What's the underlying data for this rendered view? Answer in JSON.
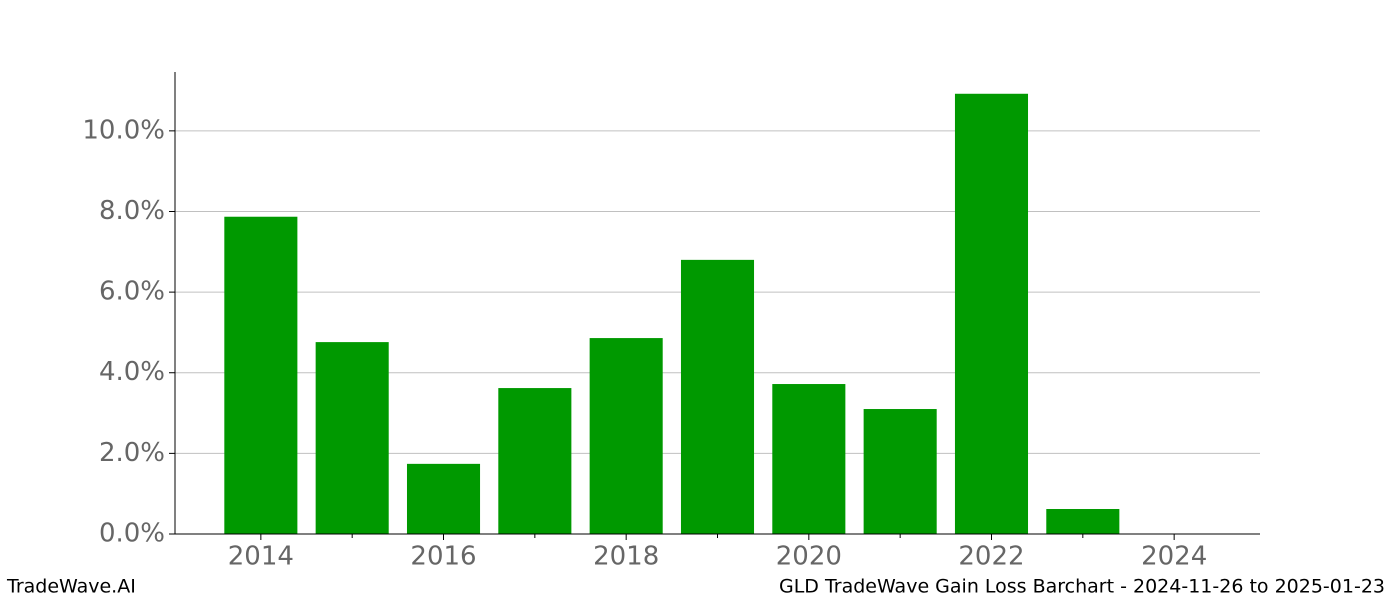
{
  "chart_data": {
    "type": "bar",
    "title": "GLD TradeWave Gain Loss Barchart - 2024-11-26 to 2025-01-23",
    "source": "TradeWave.AI",
    "x": [
      2014,
      2015,
      2016,
      2017,
      2018,
      2019,
      2020,
      2021,
      2022,
      2023
    ],
    "values": [
      7.87,
      4.76,
      1.74,
      3.62,
      4.86,
      6.8,
      3.72,
      3.1,
      10.92,
      0.62
    ],
    "color": "#009900",
    "xlim": [
      2013.06,
      2024.94
    ],
    "xticks": [
      2014,
      2016,
      2018,
      2020,
      2022,
      2024
    ],
    "xminorticks": [
      2015,
      2017,
      2019,
      2021,
      2023
    ],
    "ylim": [
      0,
      11.46
    ],
    "yticks": [
      {
        "value": 0,
        "label": "0.0%"
      },
      {
        "value": 2,
        "label": "2.0%"
      },
      {
        "value": 4,
        "label": "4.0%"
      },
      {
        "value": 6,
        "label": "6.0%"
      },
      {
        "value": 8,
        "label": "8.0%"
      },
      {
        "value": 10,
        "label": "10.0%"
      }
    ],
    "grid": true
  }
}
